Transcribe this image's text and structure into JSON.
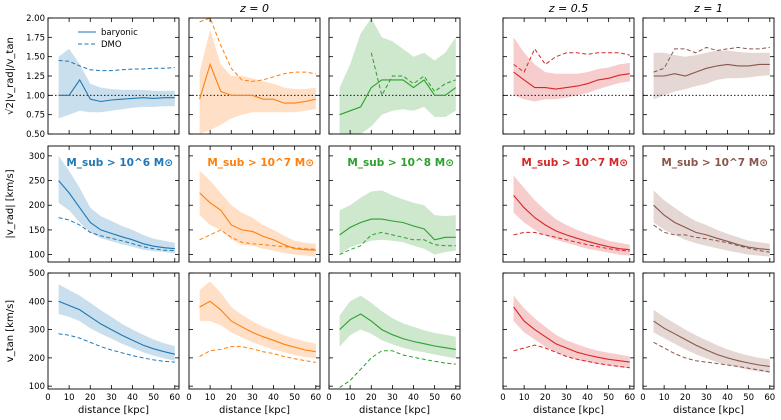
{
  "chart_data": {
    "type": "line",
    "column_titles": [
      "",
      "z = 0",
      "",
      "z = 0.5",
      "z = 1"
    ],
    "legend": {
      "placement": "top-left of first panel",
      "entries": [
        {
          "label": "baryonic",
          "style": "solid"
        },
        {
          "label": "DMO",
          "style": "dashed"
        }
      ]
    },
    "xlabel": "distance [kpc]",
    "x_ticks": [
      0,
      10,
      20,
      30,
      40,
      50,
      60
    ],
    "xlim": [
      0,
      62
    ],
    "rows": [
      {
        "ylabel": "√2|v_rad|/v_tan",
        "ylim": [
          0.5,
          2.0
        ],
        "y_ticks": [
          "0.50",
          "0.75",
          "1.00",
          "1.25",
          "1.50",
          "1.75",
          "2.00"
        ],
        "y_tick_values": [
          0.5,
          0.75,
          1.0,
          1.25,
          1.5,
          1.75,
          2.0
        ],
        "reference_line": 1.0
      },
      {
        "ylabel": "|v_rad| [km/s]",
        "ylim": [
          85,
          320
        ],
        "y_ticks": [
          "100",
          "150",
          "200",
          "250",
          "300"
        ],
        "y_tick_values": [
          100,
          150,
          200,
          250,
          300
        ]
      },
      {
        "ylabel": "v_tan [km/s]",
        "ylim": [
          90,
          500
        ],
        "y_ticks": [
          "100",
          "200",
          "300",
          "400",
          "500"
        ],
        "y_tick_values": [
          100,
          200,
          300,
          400,
          500
        ]
      }
    ],
    "panels": [
      {
        "color": "#1f77b4",
        "mass_label": "M_sub > 10^6 M⊙",
        "x": [
          5,
          10,
          15,
          20,
          25,
          30,
          35,
          40,
          45,
          50,
          55,
          60
        ],
        "rows": [
          {
            "baryonic": [
              1.0,
              1.0,
              1.2,
              0.95,
              0.92,
              0.94,
              0.95,
              0.96,
              0.97,
              0.96,
              0.97,
              0.97
            ],
            "band_low": [
              0.7,
              0.75,
              0.8,
              0.78,
              0.78,
              0.8,
              0.82,
              0.84,
              0.85,
              0.85,
              0.86,
              0.86
            ],
            "band_high": [
              1.5,
              1.6,
              1.4,
              1.15,
              1.1,
              1.08,
              1.07,
              1.07,
              1.07,
              1.06,
              1.06,
              1.06
            ],
            "dmo": [
              1.45,
              1.44,
              1.38,
              1.33,
              1.32,
              1.32,
              1.33,
              1.34,
              1.34,
              1.35,
              1.35,
              1.36
            ]
          },
          {
            "baryonic": [
              250,
              225,
              195,
              165,
              150,
              143,
              136,
              130,
              122,
              117,
              114,
              112
            ],
            "band_low": [
              205,
              190,
              165,
              145,
              133,
              127,
              121,
              116,
              110,
              107,
              105,
              103
            ],
            "band_high": [
              300,
              270,
              235,
              195,
              178,
              168,
              158,
              150,
              140,
              132,
              128,
              124
            ],
            "dmo": [
              175,
              170,
              160,
              145,
              138,
              133,
              128,
              122,
              116,
              112,
              109,
              108
            ]
          },
          {
            "baryonic": [
              400,
              385,
              370,
              345,
              320,
              300,
              280,
              262,
              245,
              232,
              222,
              213
            ],
            "band_low": [
              355,
              345,
              330,
              305,
              285,
              268,
              250,
              235,
              220,
              208,
              198,
              190
            ],
            "band_high": [
              460,
              440,
              420,
              395,
              368,
              345,
              320,
              300,
              282,
              265,
              252,
              242
            ],
            "dmo": [
              285,
              280,
              270,
              255,
              240,
              228,
              218,
              208,
              200,
              193,
              188,
              185
            ]
          }
        ]
      },
      {
        "color": "#ff7f0e",
        "mass_label": "M_sub > 10^7 M⊙",
        "x": [
          5,
          10,
          15,
          20,
          25,
          30,
          35,
          40,
          45,
          50,
          55,
          60
        ],
        "rows": [
          {
            "baryonic": [
              0.95,
              1.4,
              1.05,
              1.0,
              1.0,
              1.0,
              0.95,
              0.95,
              0.9,
              0.9,
              0.92,
              0.95
            ],
            "band_low": [
              0.5,
              0.55,
              0.62,
              0.7,
              0.75,
              0.78,
              0.78,
              0.78,
              0.78,
              0.78,
              0.8,
              0.82
            ],
            "band_high": [
              1.3,
              1.85,
              1.4,
              1.25,
              1.25,
              1.22,
              1.18,
              1.15,
              1.1,
              1.08,
              1.08,
              1.1
            ],
            "dmo": [
              1.95,
              2.0,
              1.65,
              1.35,
              1.2,
              1.18,
              1.2,
              1.24,
              1.28,
              1.3,
              1.3,
              1.28
            ]
          },
          {
            "baryonic": [
              225,
              205,
              190,
              160,
              150,
              147,
              137,
              130,
              120,
              112,
              110,
              109
            ],
            "band_low": [
              180,
              160,
              150,
              130,
              120,
              118,
              112,
              108,
              103,
              100,
              98,
              96
            ],
            "band_high": [
              270,
              250,
              225,
              200,
              185,
              175,
              160,
              150,
              138,
              128,
              124,
              122
            ],
            "dmo": [
              130,
              140,
              150,
              135,
              125,
              122,
              120,
              118,
              116,
              114,
              112,
              111
            ]
          },
          {
            "baryonic": [
              380,
              400,
              370,
              330,
              310,
              290,
              275,
              262,
              248,
              238,
              228,
              222
            ],
            "band_low": [
              330,
              330,
              315,
              290,
              272,
              255,
              242,
              230,
              220,
              210,
              203,
              198
            ],
            "band_high": [
              440,
              470,
              430,
              380,
              352,
              330,
              310,
              295,
              280,
              268,
              258,
              250
            ],
            "dmo": [
              205,
              225,
              230,
              240,
              240,
              232,
              222,
              215,
              205,
              197,
              190,
              184
            ]
          }
        ]
      },
      {
        "color": "#2ca02c",
        "mass_label": "M_sub > 10^8 M⊙",
        "x": [
          5,
          10,
          15,
          20,
          25,
          30,
          35,
          40,
          45,
          50,
          55,
          60
        ],
        "rows": [
          {
            "baryonic": [
              0.75,
              0.8,
              0.85,
              1.1,
              1.2,
              1.2,
              1.2,
              1.1,
              1.2,
              1.0,
              1.0,
              1.1
            ],
            "band_low": [
              0.5,
              0.5,
              0.5,
              0.6,
              0.75,
              0.8,
              0.82,
              0.8,
              0.85,
              0.72,
              0.72,
              0.8
            ],
            "band_high": [
              1.1,
              1.4,
              1.8,
              2.0,
              1.75,
              1.7,
              1.6,
              1.5,
              1.55,
              1.45,
              1.55,
              1.75
            ],
            "dmo": [
              null,
              null,
              null,
              1.55,
              1.0,
              1.25,
              1.25,
              1.15,
              1.25,
              1.05,
              1.15,
              1.2
            ]
          },
          {
            "baryonic": [
              140,
              155,
              165,
              172,
              172,
              168,
              165,
              158,
              152,
              130,
              135,
              135
            ],
            "band_low": [
              100,
              115,
              122,
              128,
              130,
              128,
              125,
              118,
              112,
              100,
              105,
              108
            ],
            "band_high": [
              190,
              200,
              215,
              228,
              230,
              220,
              212,
              205,
              200,
              180,
              178,
              180
            ],
            "dmo": [
              100,
              110,
              118,
              140,
              145,
              140,
              135,
              130,
              130,
              120,
              118,
              118
            ]
          },
          {
            "baryonic": [
              300,
              335,
              355,
              330,
              300,
              282,
              268,
              258,
              250,
              242,
              236,
              230
            ],
            "band_low": [
              240,
              280,
              300,
              285,
              262,
              248,
              236,
              226,
              220,
              212,
              205,
              198
            ],
            "band_high": [
              350,
              400,
              420,
              395,
              365,
              340,
              322,
              310,
              298,
              288,
              282,
              275
            ],
            "dmo": [
              95,
              120,
              160,
              200,
              225,
              225,
              210,
              202,
              195,
              188,
              182,
              178
            ]
          }
        ]
      },
      {
        "color": "#d62728",
        "mass_label": "M_sub > 10^7 M⊙",
        "x": [
          5,
          10,
          15,
          20,
          25,
          30,
          35,
          40,
          45,
          50,
          55,
          60
        ],
        "rows": [
          {
            "baryonic": [
              1.3,
              1.2,
              1.1,
              1.1,
              1.08,
              1.1,
              1.12,
              1.15,
              1.2,
              1.22,
              1.26,
              1.28
            ],
            "band_low": [
              1.0,
              0.95,
              0.92,
              0.95,
              0.95,
              0.97,
              1.0,
              1.03,
              1.08,
              1.12,
              1.16,
              1.18
            ],
            "band_high": [
              1.75,
              1.55,
              1.4,
              1.3,
              1.28,
              1.28,
              1.28,
              1.3,
              1.34,
              1.36,
              1.4,
              1.42
            ],
            "dmo": [
              1.4,
              1.3,
              1.6,
              1.4,
              1.5,
              1.55,
              1.55,
              1.53,
              1.55,
              1.55,
              1.55,
              1.52
            ]
          },
          {
            "baryonic": [
              220,
              195,
              175,
              160,
              148,
              140,
              133,
              127,
              121,
              116,
              112,
              110
            ],
            "band_low": [
              185,
              165,
              150,
              138,
              130,
              124,
              118,
              112,
              108,
              104,
              100,
              98
            ],
            "band_high": [
              260,
              235,
              210,
              190,
              172,
              160,
              150,
              142,
              135,
              128,
              124,
              120
            ],
            "dmo": [
              140,
              145,
              145,
              140,
              135,
              130,
              125,
              120,
              116,
              112,
              109,
              107
            ]
          },
          {
            "baryonic": [
              380,
              330,
              300,
              275,
              250,
              235,
              220,
              210,
              202,
              195,
              190,
              185
            ],
            "band_low": [
              330,
              290,
              265,
              240,
              220,
              205,
              193,
              185,
              178,
              172,
              167,
              163
            ],
            "band_high": [
              420,
              375,
              340,
              310,
              282,
              262,
              248,
              235,
              225,
              218,
              212,
              205
            ],
            "dmo": [
              225,
              235,
              245,
              235,
              220,
              205,
              195,
              188,
              180,
              175,
              170,
              165
            ]
          }
        ]
      },
      {
        "color": "#8c564b",
        "mass_label": "M_sub > 10^7 M⊙",
        "x": [
          5,
          10,
          15,
          20,
          25,
          30,
          35,
          40,
          45,
          50,
          55,
          60
        ],
        "rows": [
          {
            "baryonic": [
              1.25,
              1.25,
              1.28,
              1.25,
              1.3,
              1.35,
              1.38,
              1.4,
              1.38,
              1.38,
              1.4,
              1.4
            ],
            "band_low": [
              0.95,
              1.0,
              1.05,
              1.08,
              1.12,
              1.15,
              1.2,
              1.22,
              1.22,
              1.23,
              1.25,
              1.26
            ],
            "band_high": [
              1.55,
              1.55,
              1.52,
              1.5,
              1.52,
              1.55,
              1.58,
              1.58,
              1.56,
              1.55,
              1.55,
              1.55
            ],
            "dmo": [
              1.3,
              1.35,
              1.6,
              1.6,
              1.55,
              1.62,
              1.58,
              1.6,
              1.62,
              1.6,
              1.6,
              1.62
            ]
          },
          {
            "baryonic": [
              200,
              180,
              165,
              155,
              145,
              140,
              133,
              127,
              120,
              115,
              112,
              110
            ],
            "band_low": [
              165,
              150,
              140,
              130,
              123,
              118,
              113,
              108,
              104,
              100,
              98,
              96
            ],
            "band_high": [
              230,
              210,
              195,
              180,
              168,
              160,
              150,
              142,
              135,
              128,
              125,
              122
            ],
            "dmo": [
              160,
              145,
              140,
              140,
              135,
              132,
              128,
              124,
              118,
              113,
              108,
              105
            ]
          },
          {
            "baryonic": [
              330,
              305,
              285,
              265,
              245,
              228,
              212,
              200,
              190,
              182,
              175,
              170
            ],
            "band_low": [
              290,
              270,
              250,
              230,
              213,
              198,
              185,
              175,
              166,
              158,
              152,
              148
            ],
            "band_high": [
              370,
              345,
              322,
              300,
              280,
              262,
              245,
              230,
              218,
              208,
              200,
              195
            ],
            "dmo": [
              255,
              235,
              215,
              200,
              190,
              185,
              180,
              175,
              170,
              163,
              157,
              150
            ]
          }
        ]
      }
    ]
  }
}
